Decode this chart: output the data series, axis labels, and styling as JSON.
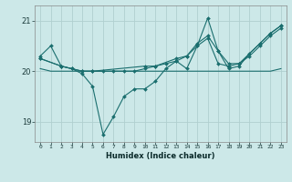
{
  "xlabel": "Humidex (Indice chaleur)",
  "background_color": "#cce8e8",
  "grid_color": "#b0d0d0",
  "line_color": "#1a6e6e",
  "xlim": [
    -0.5,
    23.5
  ],
  "ylim": [
    18.6,
    21.3
  ],
  "yticks": [
    19,
    20,
    21
  ],
  "xticks": [
    0,
    1,
    2,
    3,
    4,
    5,
    6,
    7,
    8,
    9,
    10,
    11,
    12,
    13,
    14,
    15,
    16,
    17,
    18,
    19,
    20,
    21,
    22,
    23
  ],
  "line1_x": [
    0,
    1,
    2,
    3,
    4,
    5,
    6,
    7,
    8,
    9,
    10,
    11,
    12,
    13,
    14,
    15,
    16,
    17,
    18,
    19,
    20,
    21,
    22,
    23
  ],
  "line1_y": [
    20.3,
    20.5,
    20.1,
    20.05,
    19.95,
    19.7,
    18.75,
    19.1,
    19.5,
    19.65,
    19.65,
    19.8,
    20.05,
    20.2,
    20.05,
    20.5,
    21.05,
    20.4,
    20.05,
    20.1,
    20.35,
    20.55,
    20.75,
    20.9
  ],
  "line2_x": [
    0,
    1,
    2,
    3,
    4,
    5,
    6,
    7,
    8,
    9,
    10,
    11,
    12,
    13,
    14,
    15,
    16,
    17,
    18,
    19,
    20,
    21,
    22,
    23
  ],
  "line2_y": [
    20.05,
    20.0,
    20.0,
    20.0,
    20.0,
    20.0,
    20.0,
    20.0,
    20.0,
    20.0,
    20.0,
    20.0,
    20.0,
    20.0,
    20.0,
    20.0,
    20.0,
    20.0,
    20.0,
    20.0,
    20.0,
    20.0,
    20.0,
    20.05
  ],
  "line3_x": [
    0,
    2,
    3,
    4,
    5,
    6,
    7,
    8,
    9,
    10,
    11,
    12,
    13,
    14,
    15,
    16,
    17,
    18,
    19,
    20,
    21,
    22,
    23
  ],
  "line3_y": [
    20.25,
    20.1,
    20.05,
    20.0,
    20.0,
    20.0,
    20.0,
    20.0,
    20.0,
    20.05,
    20.1,
    20.15,
    20.2,
    20.3,
    20.5,
    20.65,
    20.15,
    20.1,
    20.15,
    20.3,
    20.5,
    20.7,
    20.85
  ],
  "line4_x": [
    0,
    2,
    4,
    5,
    10,
    11,
    13,
    14,
    15,
    16,
    17,
    18,
    19,
    21,
    22,
    23
  ],
  "line4_y": [
    20.25,
    20.1,
    20.0,
    20.0,
    20.1,
    20.1,
    20.25,
    20.3,
    20.55,
    20.7,
    20.4,
    20.15,
    20.15,
    20.55,
    20.75,
    20.9
  ]
}
